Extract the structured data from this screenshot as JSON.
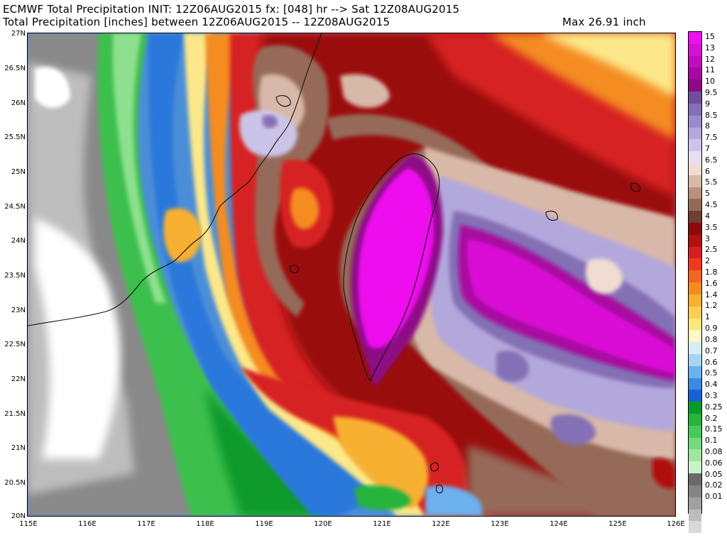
{
  "header": {
    "title_line1": "ECMWF Total Precipitation INIT: 12Z06AUG2015 fx: [048] hr --> Sat 12Z08AUG2015",
    "title_line2": "Total Precipitation [inches] between 12Z06AUG2015 -- 12Z08AUG2015",
    "max_label": "Max 26.91 inch"
  },
  "map": {
    "lat_labels": [
      "27N",
      "26.5N",
      "26N",
      "25.5N",
      "25N",
      "24.5N",
      "24N",
      "23.5N",
      "23N",
      "22.5N",
      "22N",
      "21.5N",
      "21N",
      "20.5N",
      "20N"
    ],
    "lon_labels": [
      "115E",
      "116E",
      "117E",
      "118E",
      "119E",
      "120E",
      "121E",
      "122E",
      "123E",
      "124E",
      "125E",
      "126E"
    ]
  },
  "colorbar": {
    "levels": [
      {
        "label": "15",
        "color": "#ee11ee"
      },
      {
        "label": "13",
        "color": "#d90fd5"
      },
      {
        "label": "12",
        "color": "#c00bbf"
      },
      {
        "label": "11",
        "color": "#a8089f"
      },
      {
        "label": "10",
        "color": "#8c0a86"
      },
      {
        "label": "9.5",
        "color": "#6f4f9c"
      },
      {
        "label": "9",
        "color": "#8470b4"
      },
      {
        "label": "8.5",
        "color": "#9a8ccc"
      },
      {
        "label": "8",
        "color": "#b3a8dc"
      },
      {
        "label": "7.5",
        "color": "#ccc4e8"
      },
      {
        "label": "7",
        "color": "#e4e0f2"
      },
      {
        "label": "6.5",
        "color": "#f0dcd2"
      },
      {
        "label": "6",
        "color": "#d8b8a8"
      },
      {
        "label": "5.5",
        "color": "#b8907e"
      },
      {
        "label": "5",
        "color": "#966a58"
      },
      {
        "label": "4.5",
        "color": "#6e3e30"
      },
      {
        "label": "4",
        "color": "#8a0a0a"
      },
      {
        "label": "3.5",
        "color": "#b01010"
      },
      {
        "label": "3",
        "color": "#d62020"
      },
      {
        "label": "2.5",
        "color": "#ee3a1e"
      },
      {
        "label": "2",
        "color": "#f2661e"
      },
      {
        "label": "1.8",
        "color": "#f48c22"
      },
      {
        "label": "1.6",
        "color": "#f8b030"
      },
      {
        "label": "1.4",
        "color": "#fad050"
      },
      {
        "label": "1.2",
        "color": "#fce87a"
      },
      {
        "label": "1",
        "color": "#fff8c4"
      },
      {
        "label": "0.9",
        "color": "#d8ecf8"
      },
      {
        "label": "0.8",
        "color": "#a8d4f4"
      },
      {
        "label": "0.7",
        "color": "#6cb0ee"
      },
      {
        "label": "0.6",
        "color": "#3a8ae2"
      },
      {
        "label": "0.5",
        "color": "#1a62d4"
      },
      {
        "label": "0.4",
        "color": "#0a9a2a"
      },
      {
        "label": "0.3",
        "color": "#26b43c"
      },
      {
        "label": "0.25",
        "color": "#48c85a"
      },
      {
        "label": "0.2",
        "color": "#74d87c"
      },
      {
        "label": "0.15",
        "color": "#a0e6a0"
      },
      {
        "label": "0.1",
        "color": "#c8f2c8"
      },
      {
        "label": "0.08",
        "color": "#6a6a6a"
      },
      {
        "label": "0.06",
        "color": "#858585"
      },
      {
        "label": "0.05",
        "color": "#a0a0a0"
      },
      {
        "label": "0.02",
        "color": "#bcbcbc"
      },
      {
        "label": "0.01",
        "color": "#d8d8d8"
      },
      {
        "label": "",
        "color": "#ffffff"
      }
    ]
  }
}
